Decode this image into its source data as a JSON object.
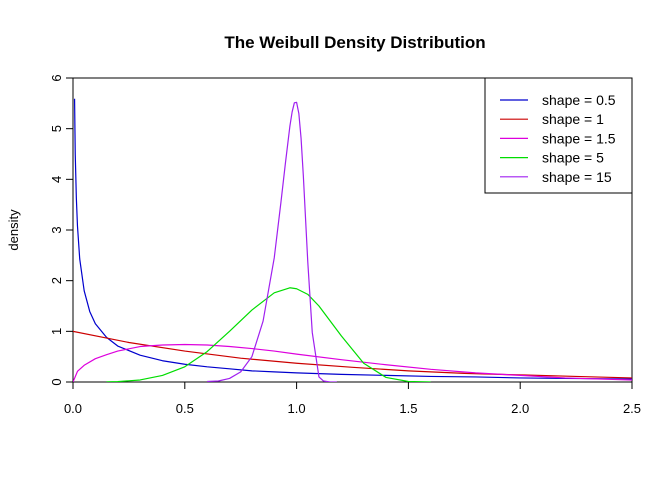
{
  "chart_data": {
    "type": "line",
    "title": "The Weibull Density Distribution",
    "xlabel": "",
    "ylabel": "density",
    "xlim": [
      0,
      2.5
    ],
    "ylim": [
      0,
      6
    ],
    "x_ticks": [
      0.0,
      0.5,
      1.0,
      1.5,
      2.0,
      2.5
    ],
    "x_tick_labels": [
      "0.0",
      "0.5",
      "1.0",
      "1.5",
      "2.0",
      "2.5"
    ],
    "y_ticks": [
      0,
      1,
      2,
      3,
      4,
      5,
      6
    ],
    "y_tick_labels": [
      "0",
      "1",
      "2",
      "3",
      "4",
      "5",
      "6"
    ],
    "legend_position": "top-right",
    "grid": false,
    "series": [
      {
        "name": "shape = 0.5",
        "color": "#0000cd",
        "x": [
          0.007,
          0.01,
          0.015,
          0.02,
          0.03,
          0.05,
          0.075,
          0.1,
          0.15,
          0.2,
          0.3,
          0.4,
          0.5,
          0.6,
          0.7,
          0.8,
          0.9,
          1.0,
          1.2,
          1.4,
          1.6,
          1.8,
          2.0,
          2.2,
          2.5
        ],
        "y": [
          5.59,
          4.5,
          3.63,
          3.08,
          2.43,
          1.8,
          1.39,
          1.15,
          0.88,
          0.71,
          0.53,
          0.42,
          0.35,
          0.3,
          0.26,
          0.22,
          0.2,
          0.18,
          0.15,
          0.13,
          0.11,
          0.1,
          0.08,
          0.07,
          0.06
        ]
      },
      {
        "name": "shape = 1",
        "color": "#cc0000",
        "x": [
          0.0,
          0.25,
          0.5,
          0.75,
          1.0,
          1.25,
          1.5,
          1.75,
          2.0,
          2.25,
          2.5
        ],
        "y": [
          1.0,
          0.78,
          0.61,
          0.47,
          0.37,
          0.29,
          0.22,
          0.17,
          0.14,
          0.11,
          0.08
        ]
      },
      {
        "name": "shape = 1.5",
        "color": "#dd00dd",
        "x": [
          0.0,
          0.02,
          0.05,
          0.1,
          0.15,
          0.2,
          0.3,
          0.4,
          0.5,
          0.6,
          0.7,
          0.8,
          0.9,
          1.0,
          1.2,
          1.4,
          1.6,
          1.8,
          2.0,
          2.2,
          2.5
        ],
        "y": [
          0.0,
          0.21,
          0.33,
          0.46,
          0.54,
          0.61,
          0.7,
          0.73,
          0.74,
          0.73,
          0.7,
          0.66,
          0.61,
          0.55,
          0.44,
          0.34,
          0.25,
          0.18,
          0.13,
          0.08,
          0.04
        ]
      },
      {
        "name": "shape = 5",
        "color": "#00dd00",
        "x": [
          0.15,
          0.2,
          0.3,
          0.4,
          0.5,
          0.6,
          0.7,
          0.8,
          0.9,
          0.97,
          1.0,
          1.05,
          1.1,
          1.2,
          1.3,
          1.4,
          1.5,
          1.6
        ],
        "y": [
          0.0025,
          0.008,
          0.04,
          0.13,
          0.3,
          0.6,
          1.0,
          1.42,
          1.76,
          1.86,
          1.84,
          1.73,
          1.5,
          0.91,
          0.37,
          0.09,
          0.01,
          0.001
        ]
      },
      {
        "name": "shape = 15",
        "color": "#a020f0",
        "x": [
          0.6,
          0.65,
          0.7,
          0.75,
          0.8,
          0.85,
          0.9,
          0.93,
          0.95,
          0.97,
          0.98,
          0.99,
          1.0,
          1.01,
          1.02,
          1.03,
          1.05,
          1.07,
          1.1,
          1.12,
          1.15,
          1.18
        ],
        "y": [
          0.011,
          0.02,
          0.07,
          0.2,
          0.5,
          1.2,
          2.45,
          3.55,
          4.32,
          5.05,
          5.33,
          5.51,
          5.52,
          5.3,
          4.81,
          4.08,
          2.37,
          0.98,
          0.1,
          0.02,
          0.0005,
          0.0
        ]
      }
    ]
  }
}
